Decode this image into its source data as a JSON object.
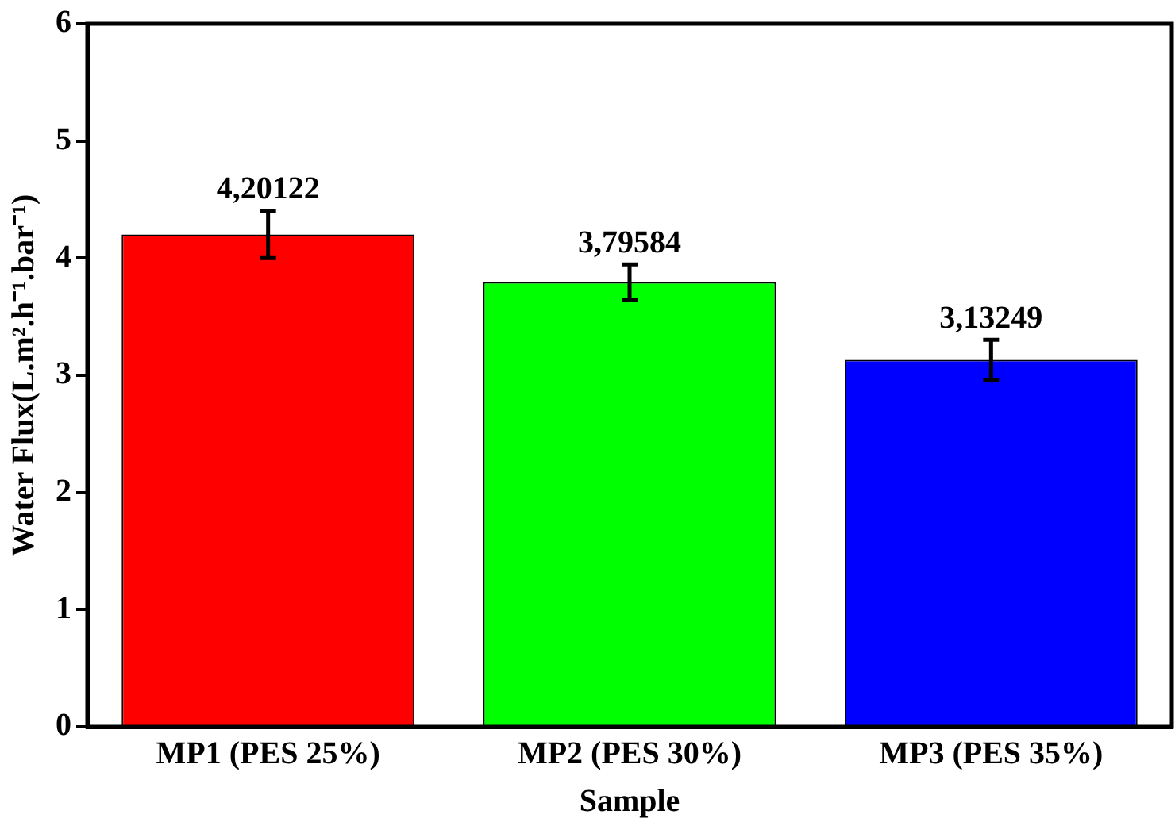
{
  "chart_data": {
    "type": "bar",
    "xlabel": "Sample",
    "ylabel": "Water Flux(L.m².h⁻¹.bar⁻¹)",
    "categories": [
      "MP1 (PES 25%)",
      "MP2 (PES 30%)",
      "MP3 (PES 35%)"
    ],
    "values": [
      4.20122,
      3.79584,
      3.13249
    ],
    "colors": [
      "#ff0000",
      "#00ff00",
      "#0000ff"
    ],
    "errors": [
      0.2,
      0.15,
      0.17
    ],
    "value_labels": [
      "4,20122",
      "3,79584",
      "3,13249"
    ],
    "ylim": [
      0,
      6
    ],
    "yticks": [
      0,
      1,
      2,
      3,
      4,
      5,
      6
    ],
    "grid": false,
    "legend": false
  }
}
